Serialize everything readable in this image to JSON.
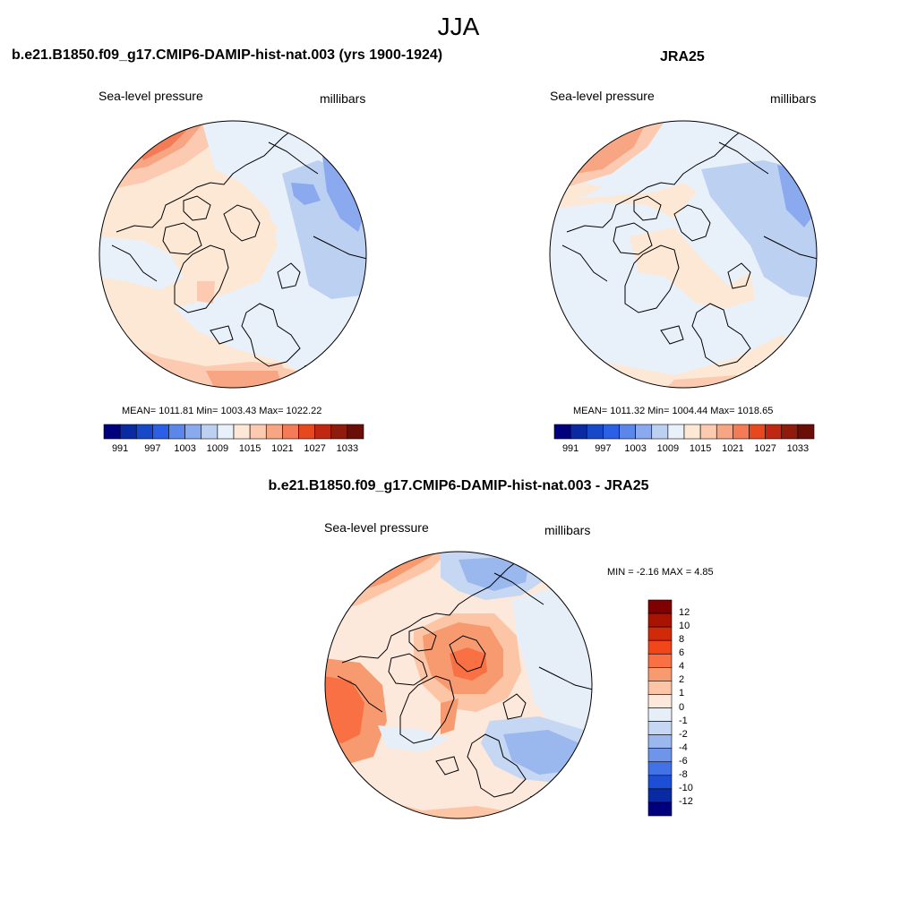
{
  "figure": {
    "title": "JJA",
    "panels": [
      {
        "title": "b.e21.B1850.f09_g17.CMIP6-DAMIP-hist-nat.003 (yrs 1900-1924)",
        "left_label": "Sea-level pressure",
        "right_label": "millibars",
        "stats": "MEAN= 1011.81  Min= 1003.43  Max= 1022.22"
      },
      {
        "title": "JRA25",
        "left_label": "Sea-level pressure",
        "right_label": "millibars",
        "stats": "MEAN= 1011.32  Min= 1004.44  Max= 1018.65"
      },
      {
        "title": "b.e21.B1850.f09_g17.CMIP6-DAMIP-hist-nat.003 - JRA25",
        "left_label": "Sea-level pressure",
        "right_label": "millibars",
        "stats": "MIN =  -2.16 MAX =   4.85"
      }
    ]
  },
  "chart_data": [
    {
      "type": "heatmap",
      "projection": "polar-stereographic-north",
      "title": "b.e21.B1850.f09_g17.CMIP6-DAMIP-hist-nat.003 (yrs 1900-1924)",
      "variable": "Sea-level pressure",
      "units": "millibars",
      "mean": 1011.81,
      "min": 1003.43,
      "max": 1022.22,
      "colorbar_ticks": [
        "991",
        "997",
        "1003",
        "1009",
        "1015",
        "1021",
        "1027",
        "1033"
      ],
      "colorbar_colors": [
        "#00007f",
        "#0a2aa3",
        "#1748c8",
        "#2a5fe6",
        "#5b86ea",
        "#8ba9ee",
        "#bcd0f2",
        "#e8f0fa",
        "#fde8d6",
        "#fbcab0",
        "#f7a582",
        "#f37b55",
        "#e8481e",
        "#c02712",
        "#8f1b0d",
        "#6b0e07"
      ],
      "legend_position": "bottom"
    },
    {
      "type": "heatmap",
      "projection": "polar-stereographic-north",
      "title": "JRA25",
      "variable": "Sea-level pressure",
      "units": "millibars",
      "mean": 1011.32,
      "min": 1004.44,
      "max": 1018.65,
      "colorbar_ticks": [
        "991",
        "997",
        "1003",
        "1009",
        "1015",
        "1021",
        "1027",
        "1033"
      ],
      "colorbar_colors": [
        "#00007f",
        "#0a2aa3",
        "#1748c8",
        "#2a5fe6",
        "#5b86ea",
        "#8ba9ee",
        "#bcd0f2",
        "#e8f0fa",
        "#fde8d6",
        "#fbcab0",
        "#f7a582",
        "#f37b55",
        "#e8481e",
        "#c02712",
        "#8f1b0d",
        "#6b0e07"
      ],
      "legend_position": "bottom"
    },
    {
      "type": "heatmap",
      "projection": "polar-stereographic-north",
      "title": "b.e21.B1850.f09_g17.CMIP6-DAMIP-hist-nat.003 - JRA25",
      "variable": "Sea-level pressure",
      "units": "millibars",
      "min": -2.16,
      "max": 4.85,
      "colorbar_ticks": [
        "12",
        "10",
        "8",
        "6",
        "4",
        "2",
        "1",
        "0",
        "-1",
        "-2",
        "-4",
        "-6",
        "-8",
        "-10",
        "-12"
      ],
      "colorbar_colors": [
        "#7f0000",
        "#a81400",
        "#d02a08",
        "#f0461a",
        "#f87043",
        "#f89a70",
        "#fbc5a6",
        "#fde8dc",
        "#e6eef8",
        "#c5d7f2",
        "#9ab8ee",
        "#6e95ea",
        "#4372e6",
        "#1c4fd6",
        "#0a2aa3",
        "#00007f"
      ],
      "legend_position": "right"
    }
  ]
}
